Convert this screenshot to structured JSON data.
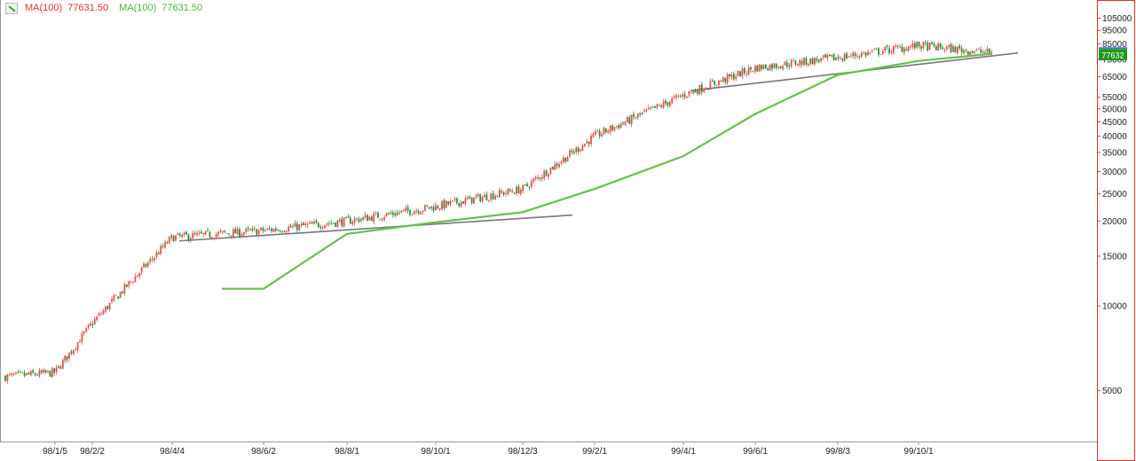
{
  "legend": {
    "ma1_label": "MA(100)",
    "ma1_value": "77631.50",
    "ma2_label": "MA(100)",
    "ma2_value": "77631.50",
    "ma1_color": "#e03030",
    "ma2_color": "#44b844",
    "icon": "chart-tool-icon"
  },
  "chart_data": {
    "type": "candlestick",
    "y_scale": "log",
    "ylim": [
      3300,
      120000
    ],
    "y_ticks": [
      105000,
      95000,
      85000,
      75000,
      65000,
      55000,
      50000,
      45000,
      40000,
      35000,
      30000,
      25000,
      20000,
      15000,
      10000,
      5000
    ],
    "x_tick_labels": [
      "98/1/5",
      "98/2/2",
      "98/4/4",
      "98/6/2",
      "98/8/1",
      "98/10/1",
      "98/12/3",
      "99/2/1",
      "99/4/1",
      "99/6/1",
      "99/8/3",
      "99/10/1"
    ],
    "last_price": "77632",
    "last_price_value": 77632,
    "up_color": "#e05050",
    "down_color": "#2f8f2f",
    "ma_color": "#66c04c",
    "trendline_color": "#777777",
    "grid": false,
    "price_path": [
      [
        "98/1/5",
        5800
      ],
      [
        "98/2/2",
        8700
      ],
      [
        "98/4/4",
        17500
      ],
      [
        "98/6/2",
        18500
      ],
      [
        "98/8/1",
        20000
      ],
      [
        "98/10/1",
        22500
      ],
      [
        "98/12/3",
        26000
      ],
      [
        "99/2/1",
        40000
      ],
      [
        "99/4/1",
        56000
      ],
      [
        "99/6/1",
        70000
      ],
      [
        "99/8/3",
        76000
      ],
      [
        "99/10/1",
        84000
      ]
    ],
    "ma_series": [
      [
        "98/6/2",
        11500
      ],
      [
        "98/8/1",
        18000
      ],
      [
        "98/10/1",
        19800
      ],
      [
        "98/12/3",
        21500
      ],
      [
        "99/2/1",
        26000
      ],
      [
        "99/4/1",
        34000
      ],
      [
        "99/6/1",
        48000
      ],
      [
        "99/8/3",
        66000
      ],
      [
        "99/10/1",
        74000
      ]
    ],
    "trendlines": [
      {
        "from": [
          "98/4/4",
          17000
        ],
        "to": [
          "98/12/3",
          21000
        ]
      },
      {
        "from": [
          "99/4/1",
          58000
        ],
        "to": [
          "99/10/1",
          79000
        ]
      }
    ]
  }
}
